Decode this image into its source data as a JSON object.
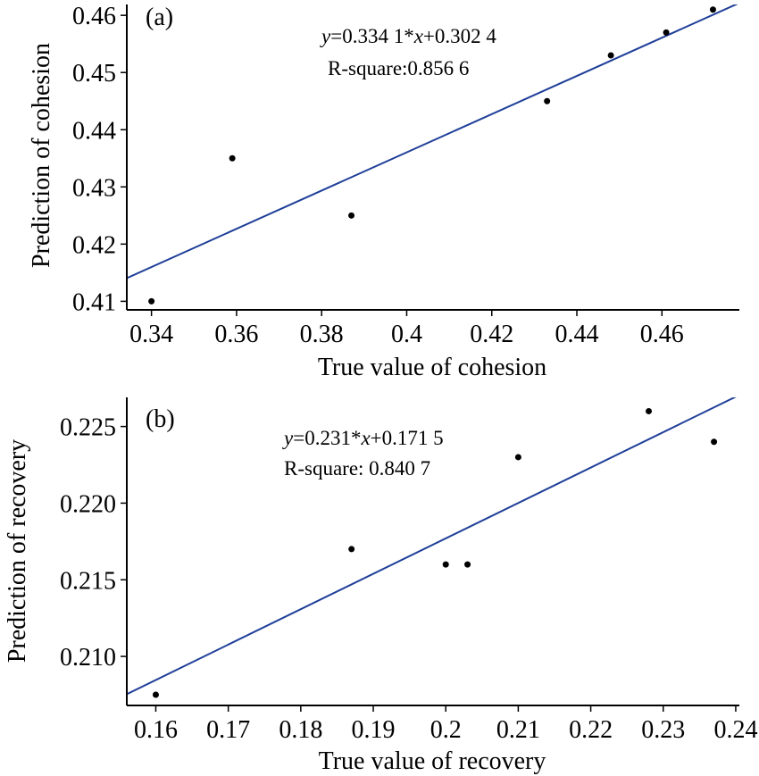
{
  "chart_data": [
    {
      "type": "scatter",
      "panel_label": "(a)",
      "title": "",
      "xlabel": "True value of cohesion",
      "ylabel": "Prediction of cohesion",
      "xlim": [
        0.3342,
        0.4782
      ],
      "ylim": [
        0.4085,
        0.4619
      ],
      "x_ticks": [
        0.34,
        0.36,
        0.38,
        0.4,
        0.42,
        0.44,
        0.46
      ],
      "x_tick_labels": [
        "0.34",
        "0.36",
        "0.38",
        "0.4",
        "0.42",
        "0.44",
        "0.46"
      ],
      "y_ticks": [
        0.41,
        0.42,
        0.43,
        0.44,
        0.45,
        0.46
      ],
      "y_tick_labels": [
        "0.41",
        "0.42",
        "0.43",
        "0.44",
        "0.45",
        "0.46"
      ],
      "grid": false,
      "legend": "none",
      "series": [
        {
          "type": "scatter",
          "points": [
            {
              "x": 0.34,
              "y": 0.41
            },
            {
              "x": 0.359,
              "y": 0.435
            },
            {
              "x": 0.387,
              "y": 0.425
            },
            {
              "x": 0.433,
              "y": 0.445
            },
            {
              "x": 0.448,
              "y": 0.453
            },
            {
              "x": 0.461,
              "y": 0.457
            },
            {
              "x": 0.472,
              "y": 0.461
            }
          ]
        },
        {
          "type": "line",
          "slope": 0.3341,
          "intercept": 0.3024
        }
      ],
      "annotations": {
        "equation": {
          "y_var": "y",
          "part1": "=0.334 1*",
          "x_var": "x",
          "part2": "+0.302 4"
        },
        "r_square": "R-square:0.856 6"
      },
      "colors": {
        "fit_line": "#1f3f99",
        "points": "#000000"
      }
    },
    {
      "type": "scatter",
      "panel_label": "(b)",
      "title": "",
      "xlabel": "True value of recovery",
      "ylabel": "Prediction of recovery",
      "xlim": [
        0.156,
        0.2405
      ],
      "ylim": [
        0.2068,
        0.2269
      ],
      "x_ticks": [
        0.16,
        0.17,
        0.18,
        0.19,
        0.2,
        0.21,
        0.22,
        0.23,
        0.24
      ],
      "x_tick_labels": [
        "0.16",
        "0.17",
        "0.18",
        "0.19",
        "0.2",
        "0.21",
        "0.22",
        "0.23",
        "0.24"
      ],
      "y_ticks": [
        0.21,
        0.215,
        0.22,
        0.225
      ],
      "y_tick_labels": [
        "0.210",
        "0.215",
        "0.220",
        "0.225"
      ],
      "grid": false,
      "legend": "none",
      "series": [
        {
          "type": "scatter",
          "points": [
            {
              "x": 0.16,
              "y": 0.2075
            },
            {
              "x": 0.187,
              "y": 0.217
            },
            {
              "x": 0.2,
              "y": 0.216
            },
            {
              "x": 0.203,
              "y": 0.216
            },
            {
              "x": 0.21,
              "y": 0.223
            },
            {
              "x": 0.228,
              "y": 0.226
            },
            {
              "x": 0.237,
              "y": 0.224
            }
          ]
        },
        {
          "type": "line",
          "slope": 0.231,
          "intercept": 0.1715
        }
      ],
      "annotations": {
        "equation": {
          "y_var": "y",
          "part1": "=0.231*",
          "x_var": "x",
          "part2": "+0.171 5"
        },
        "r_square": "R-square: 0.840 7"
      },
      "colors": {
        "fit_line": "#1f3f99",
        "points": "#000000"
      }
    }
  ]
}
